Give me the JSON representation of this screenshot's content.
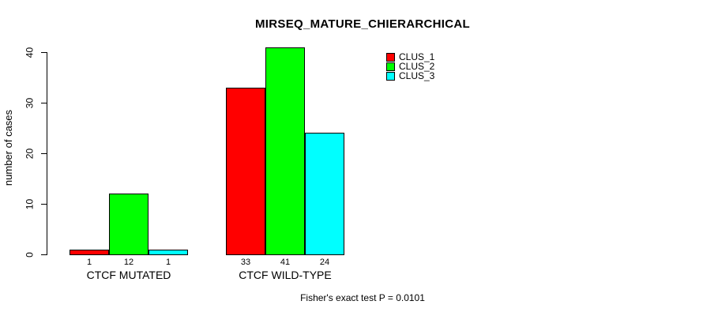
{
  "chart_data": {
    "type": "bar",
    "title": "MIRSEQ_MATURE_CHIERARCHICAL",
    "ylabel": "number of cases",
    "xlabel": "",
    "categories": [
      "CTCF MUTATED",
      "CTCF WILD-TYPE"
    ],
    "series": [
      {
        "name": "CLUS_1",
        "color": "#FF0000",
        "values": [
          1,
          33
        ]
      },
      {
        "name": "CLUS_2",
        "color": "#00FF00",
        "values": [
          12,
          41
        ]
      },
      {
        "name": "CLUS_3",
        "color": "#00FFFF",
        "values": [
          1,
          24
        ]
      }
    ],
    "ylim": [
      0,
      40
    ],
    "yticks": [
      0,
      10,
      20,
      30,
      40
    ],
    "grid": false,
    "show_value_labels": true,
    "legend_position": "top-right",
    "annotation": "Fisher's exact test P = 0.0101",
    "bar_border_color": "#000000",
    "axis_color": "#000000",
    "background": "#FFFFFF"
  }
}
